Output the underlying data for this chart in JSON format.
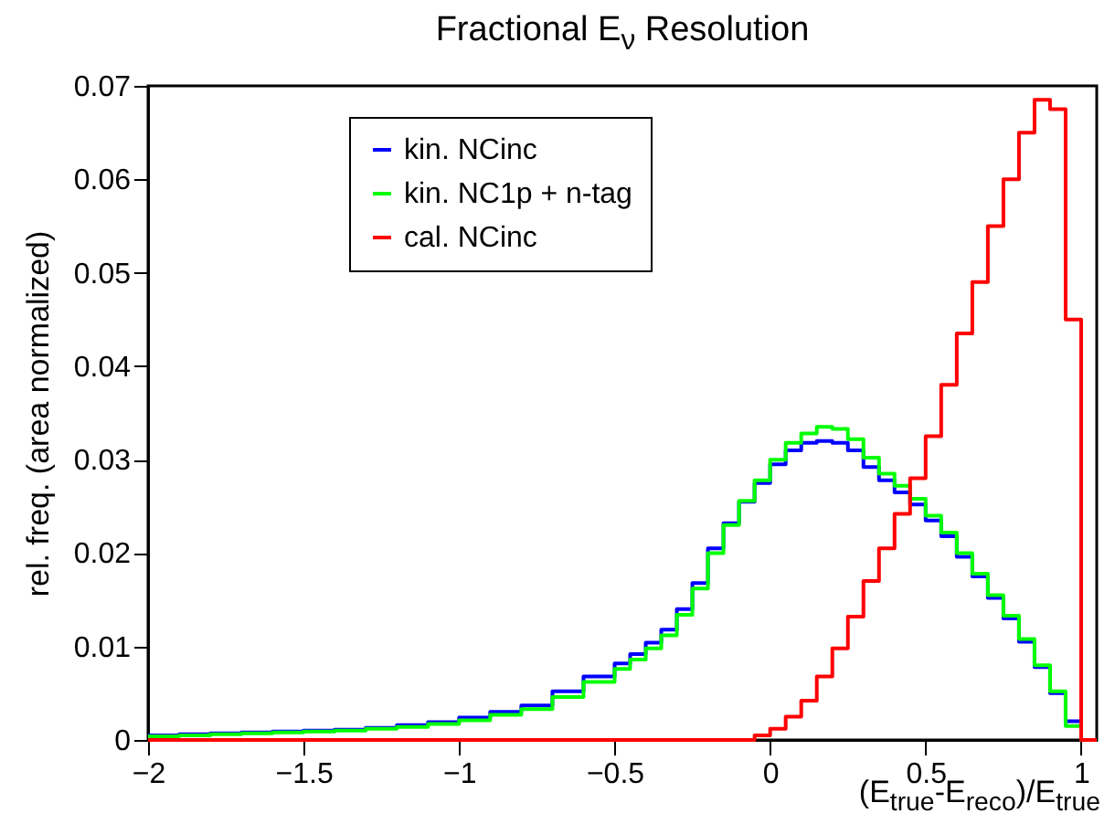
{
  "chart_data": {
    "type": "histogram",
    "title": "Fractional E$_{ν}$ Resolution",
    "xlabel": "(E$_{true}$-E$_{reco}$)/E$_{true}$",
    "ylabel": "rel. freq. (area normalized)",
    "bins": [
      -2,
      -1.9,
      -1.8,
      -1.7,
      -1.6,
      -1.5,
      -1.4,
      -1.3,
      -1.2,
      -1.1,
      -1,
      -0.9,
      -0.8,
      -0.7,
      -0.6,
      -0.5,
      -0.45,
      -0.4,
      -0.35,
      -0.3,
      -0.25,
      -0.2,
      -0.15,
      -0.1,
      -0.05,
      0,
      0.05,
      0.1,
      0.15,
      0.2,
      0.25,
      0.3,
      0.35,
      0.4,
      0.45,
      0.5,
      0.55,
      0.6,
      0.65,
      0.7,
      0.75,
      0.8,
      0.85,
      0.9,
      0.95,
      1,
      1.05
    ],
    "series": [
      {
        "name": "kin. NCinc",
        "color": "#0000ff",
        "values": [
          0.0005,
          0.0006,
          0.0007,
          0.0008,
          0.0009,
          0.001,
          0.0011,
          0.0013,
          0.0016,
          0.0019,
          0.0024,
          0.003,
          0.0037,
          0.0052,
          0.0068,
          0.0082,
          0.0092,
          0.0104,
          0.0118,
          0.014,
          0.0168,
          0.0205,
          0.0232,
          0.0255,
          0.0275,
          0.0295,
          0.031,
          0.0318,
          0.032,
          0.0318,
          0.031,
          0.0292,
          0.0278,
          0.0265,
          0.0252,
          0.0235,
          0.0218,
          0.0196,
          0.0175,
          0.0152,
          0.013,
          0.0105,
          0.0078,
          0.005,
          0.002,
          0
        ]
      },
      {
        "name": "kin. NC1p + n-tag",
        "color": "#00ff00",
        "values": [
          0.0004,
          0.0005,
          0.0006,
          0.0007,
          0.0008,
          0.0009,
          0.001,
          0.0012,
          0.0014,
          0.0017,
          0.0021,
          0.0027,
          0.0033,
          0.0046,
          0.0062,
          0.0076,
          0.0086,
          0.0098,
          0.0112,
          0.0134,
          0.0162,
          0.02,
          0.023,
          0.0256,
          0.0278,
          0.03,
          0.0318,
          0.0328,
          0.0335,
          0.0333,
          0.0322,
          0.0302,
          0.0285,
          0.0272,
          0.0258,
          0.024,
          0.0222,
          0.02,
          0.0178,
          0.0155,
          0.0133,
          0.0108,
          0.008,
          0.0052,
          0.0015,
          0
        ]
      },
      {
        "name": "cal. NCinc",
        "color": "#ff0000",
        "values": [
          0,
          0,
          0,
          0,
          0,
          0,
          0,
          0,
          0,
          0,
          0,
          0,
          0,
          0,
          0,
          0,
          0,
          0,
          0,
          0,
          0,
          0,
          0,
          0,
          0.0005,
          0.0012,
          0.0025,
          0.0042,
          0.0068,
          0.0098,
          0.0132,
          0.017,
          0.0205,
          0.0242,
          0.028,
          0.0325,
          0.038,
          0.0435,
          0.049,
          0.055,
          0.06,
          0.065,
          0.0685,
          0.0675,
          0.045,
          0
        ]
      }
    ],
    "xlim": [
      -2,
      1.05
    ],
    "xticks": [
      -2,
      -1.5,
      -1,
      -0.5,
      0,
      0.5,
      1
    ],
    "ylim": [
      0,
      0.07
    ],
    "yticks": [
      0,
      0.01,
      0.02,
      0.03,
      0.04,
      0.05,
      0.06,
      0.07
    ],
    "legend": "top left",
    "grid": false
  }
}
